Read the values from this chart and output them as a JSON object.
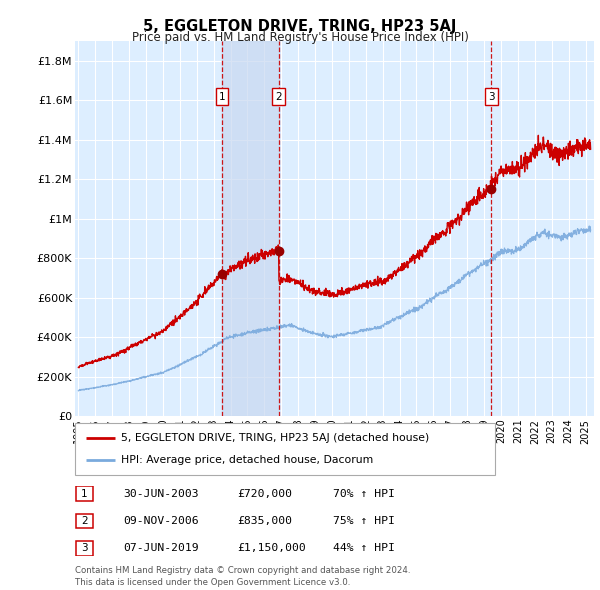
{
  "title": "5, EGGLETON DRIVE, TRING, HP23 5AJ",
  "subtitle": "Price paid vs. HM Land Registry's House Price Index (HPI)",
  "ylabel_ticks": [
    "£0",
    "£200K",
    "£400K",
    "£600K",
    "£800K",
    "£1M",
    "£1.2M",
    "£1.4M",
    "£1.6M",
    "£1.8M"
  ],
  "ytick_values": [
    0,
    200000,
    400000,
    600000,
    800000,
    1000000,
    1200000,
    1400000,
    1600000,
    1800000
  ],
  "ylim": [
    0,
    1900000
  ],
  "xlim_start": 1994.8,
  "xlim_end": 2025.5,
  "sale_dates": [
    2003.496,
    2006.86,
    2019.436
  ],
  "sale_prices": [
    720000,
    835000,
    1150000
  ],
  "sale_labels": [
    "1",
    "2",
    "3"
  ],
  "legend_entries": [
    "5, EGGLETON DRIVE, TRING, HP23 5AJ (detached house)",
    "HPI: Average price, detached house, Dacorum"
  ],
  "table_rows": [
    {
      "label": "1",
      "date": "30-JUN-2003",
      "price": "£720,000",
      "change": "70% ↑ HPI"
    },
    {
      "label": "2",
      "date": "09-NOV-2006",
      "price": "£835,000",
      "change": "75% ↑ HPI"
    },
    {
      "label": "3",
      "date": "07-JUN-2019",
      "price": "£1,150,000",
      "change": "44% ↑ HPI"
    }
  ],
  "footnote": "Contains HM Land Registry data © Crown copyright and database right 2024.\nThis data is licensed under the Open Government Licence v3.0.",
  "line_color_red": "#cc0000",
  "line_color_blue": "#7aaadd",
  "background_plot": "#ddeeff",
  "grid_color": "#ffffff",
  "vline_color": "#cc0000",
  "box_color": "#cc0000",
  "shade_color": "#c8d8f0"
}
